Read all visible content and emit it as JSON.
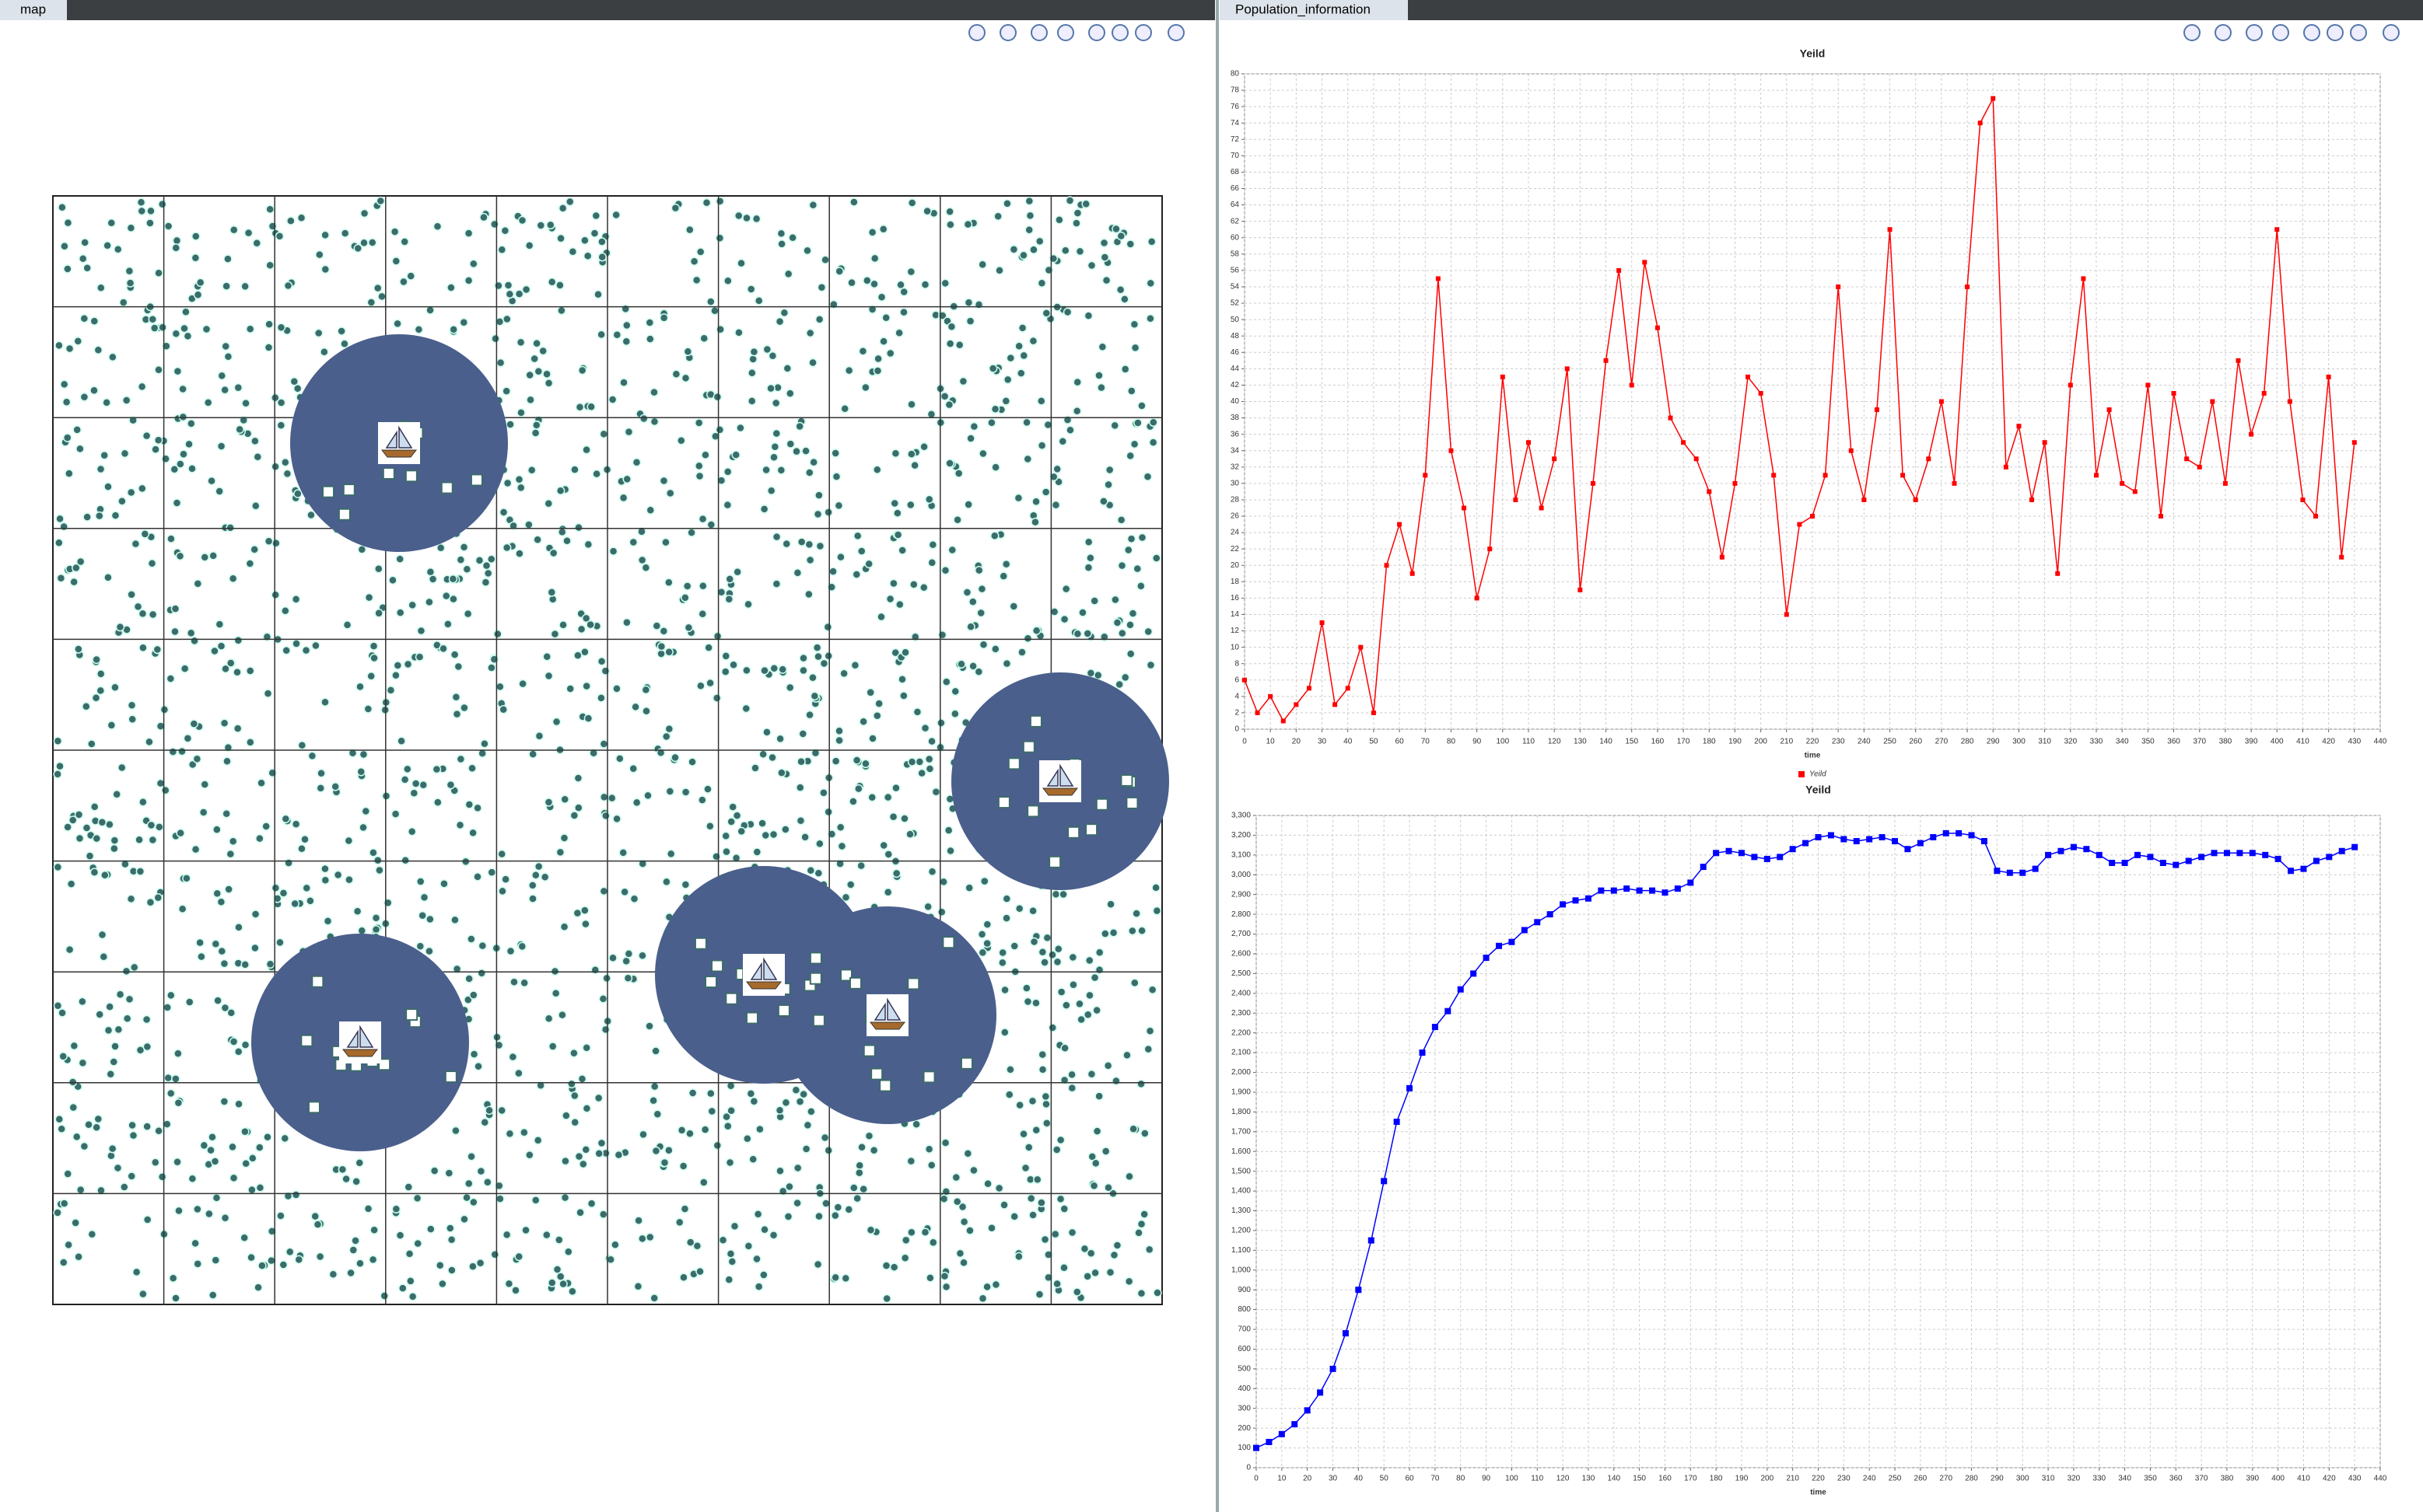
{
  "tabs": {
    "left": "map",
    "right": "Population_information"
  },
  "chart_data": [
    {
      "type": "line",
      "title": "Yeild",
      "x_label": "time",
      "grid": true,
      "legend": "bottom",
      "xlim": [
        0,
        440
      ],
      "xticks": [
        0,
        10,
        20,
        30,
        40,
        50,
        60,
        70,
        80,
        90,
        100,
        110,
        120,
        130,
        140,
        150,
        160,
        170,
        180,
        190,
        200,
        210,
        220,
        230,
        240,
        250,
        260,
        270,
        280,
        290,
        300,
        310,
        320,
        330,
        340,
        350,
        360,
        370,
        380,
        390,
        400,
        410,
        420,
        430,
        440
      ],
      "ylim": [
        0,
        80
      ],
      "yticks": [
        0,
        2,
        4,
        6,
        8,
        10,
        12,
        14,
        16,
        18,
        20,
        22,
        24,
        26,
        28,
        30,
        32,
        34,
        36,
        38,
        40,
        42,
        44,
        46,
        48,
        50,
        52,
        54,
        56,
        58,
        60,
        62,
        64,
        66,
        68,
        70,
        72,
        74,
        76,
        78,
        80
      ],
      "x": [
        0,
        5,
        10,
        15,
        20,
        25,
        30,
        35,
        40,
        45,
        50,
        55,
        60,
        65,
        70,
        75,
        80,
        85,
        90,
        95,
        100,
        105,
        110,
        115,
        120,
        125,
        130,
        135,
        140,
        145,
        150,
        155,
        160,
        165,
        170,
        175,
        180,
        185,
        190,
        195,
        200,
        205,
        210,
        215,
        220,
        225,
        230,
        235,
        240,
        245,
        250,
        255,
        260,
        265,
        270,
        275,
        280,
        285,
        290,
        295,
        300,
        305,
        310,
        315,
        320,
        325,
        330,
        335,
        340,
        345,
        350,
        355,
        360,
        365,
        370,
        375,
        380,
        385,
        390,
        395,
        400,
        405,
        410,
        415,
        420,
        425,
        430
      ],
      "series": [
        {
          "name": "Yeild",
          "color": "#ff0000",
          "values": [
            6,
            2,
            4,
            1,
            3,
            5,
            13,
            3,
            5,
            10,
            2,
            20,
            25,
            19,
            31,
            55,
            34,
            27,
            16,
            22,
            43,
            28,
            35,
            27,
            33,
            44,
            17,
            30,
            45,
            56,
            42,
            57,
            49,
            38,
            35,
            33,
            29,
            21,
            30,
            43,
            41,
            31,
            14,
            25,
            26,
            31,
            54,
            34,
            28,
            39,
            61,
            31,
            28,
            33,
            40,
            30,
            54,
            74,
            77,
            32,
            37,
            28,
            35,
            19,
            42,
            55,
            31,
            39,
            30,
            29,
            42,
            26,
            41,
            33,
            32,
            40,
            30,
            45,
            36,
            41,
            61,
            40,
            28,
            26,
            43,
            21,
            35
          ]
        }
      ]
    },
    {
      "type": "line",
      "title": "Yeild",
      "x_label": "time",
      "grid": true,
      "xlim": [
        0,
        440
      ],
      "xticks": [
        0,
        10,
        20,
        30,
        40,
        50,
        60,
        70,
        80,
        90,
        100,
        110,
        120,
        130,
        140,
        150,
        160,
        170,
        180,
        190,
        200,
        210,
        220,
        230,
        240,
        250,
        260,
        270,
        280,
        290,
        300,
        310,
        320,
        330,
        340,
        350,
        360,
        370,
        380,
        390,
        400,
        410,
        420,
        430,
        440
      ],
      "ylim": [
        0,
        3300
      ],
      "yticks": [
        0,
        100,
        200,
        300,
        400,
        500,
        600,
        700,
        800,
        900,
        {
          "value": 1000,
          "label": "1,000"
        },
        {
          "value": 1100,
          "label": "1,100"
        },
        {
          "value": 1200,
          "label": "1,200"
        },
        {
          "value": 1300,
          "label": "1,300"
        },
        {
          "value": 1400,
          "label": "1,400"
        },
        {
          "value": 1500,
          "label": "1,500"
        },
        {
          "value": 1600,
          "label": "1,600"
        },
        {
          "value": 1700,
          "label": "1,700"
        },
        {
          "value": 1800,
          "label": "1,800"
        },
        {
          "value": 1900,
          "label": "1,900"
        },
        {
          "value": 2000,
          "label": "2,000"
        },
        {
          "value": 2100,
          "label": "2,100"
        },
        {
          "value": 2200,
          "label": "2,200"
        },
        {
          "value": 2300,
          "label": "2,300"
        },
        {
          "value": 2400,
          "label": "2,400"
        },
        {
          "value": 2500,
          "label": "2,500"
        },
        {
          "value": 2600,
          "label": "2,600"
        },
        {
          "value": 2700,
          "label": "2,700"
        },
        {
          "value": 2800,
          "label": "2,800"
        },
        {
          "value": 2900,
          "label": "2,900"
        },
        {
          "value": 3000,
          "label": "3,000"
        },
        {
          "value": 3100,
          "label": "3,100"
        },
        {
          "value": 3200,
          "label": "3,200"
        },
        {
          "value": 3300,
          "label": "3,300"
        }
      ],
      "x": [
        0,
        5,
        10,
        15,
        20,
        25,
        30,
        35,
        40,
        45,
        50,
        55,
        60,
        65,
        70,
        75,
        80,
        85,
        90,
        95,
        100,
        105,
        110,
        115,
        120,
        125,
        130,
        135,
        140,
        145,
        150,
        155,
        160,
        165,
        170,
        175,
        180,
        185,
        190,
        195,
        200,
        205,
        210,
        215,
        220,
        225,
        230,
        235,
        240,
        245,
        250,
        255,
        260,
        265,
        270,
        275,
        280,
        285,
        290,
        295,
        300,
        305,
        310,
        315,
        320,
        325,
        330,
        335,
        340,
        345,
        350,
        355,
        360,
        365,
        370,
        375,
        380,
        385,
        390,
        395,
        400,
        405,
        410,
        415,
        420,
        425,
        430
      ],
      "series": [
        {
          "color": "#0000ff",
          "values": [
            100,
            130,
            170,
            220,
            290,
            380,
            500,
            680,
            900,
            1150,
            1450,
            1750,
            1920,
            2100,
            2230,
            2310,
            2420,
            2500,
            2580,
            2640,
            2660,
            2720,
            2760,
            2800,
            2850,
            2870,
            2880,
            2920,
            2920,
            2930,
            2920,
            2920,
            2910,
            2930,
            2960,
            3040,
            3110,
            3120,
            3110,
            3090,
            3080,
            3090,
            3130,
            3160,
            3190,
            3200,
            3180,
            3170,
            3180,
            3190,
            3170,
            3130,
            3160,
            3190,
            3210,
            3210,
            3200,
            3170,
            3020,
            3010,
            3010,
            3030,
            3100,
            3120,
            3140,
            3130,
            3100,
            3060,
            3060,
            3100,
            3090,
            3060,
            3050,
            3070,
            3090,
            3110,
            3110,
            3110,
            3110,
            3100,
            3080,
            3020,
            3030,
            3070,
            3090,
            3120,
            3140
          ]
        }
      ]
    }
  ]
}
